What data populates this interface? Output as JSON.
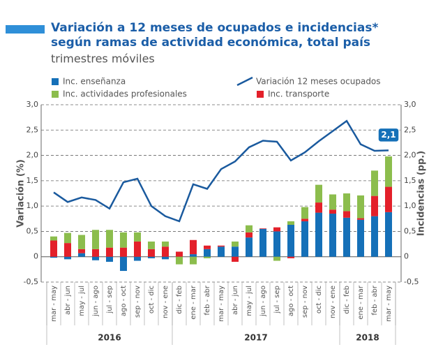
{
  "chart_data": {
    "type": "bar-line",
    "title": "Variación a 12 meses de ocupados e incidencias*",
    "title_line2": "según ramas de actividad económica, total país",
    "subtitle": "trimestres móviles",
    "ylabel": "Variación (%)",
    "y2label": "Incidencias (pp.)",
    "categories": [
      "mar - may",
      "abr - jun",
      "may - jul",
      "jun - ago",
      "jul - sep",
      "ago - oct",
      "sep - nov",
      "oct - dic",
      "nov - ene",
      "dic - feb",
      "ene - mar",
      "feb - abr",
      "mar - may",
      "abr - jun",
      "may - jul",
      "jun - ago",
      "jul - sep",
      "ago - oct",
      "sep - nov",
      "oct - dic",
      "nov - ene",
      "dic - feb",
      "ene - mar",
      "feb - abr",
      "mar - may"
    ],
    "groups": [
      {
        "label": "2016",
        "count": 9
      },
      {
        "label": "2017",
        "count": 12
      },
      {
        "label": "2018",
        "count": 4
      }
    ],
    "series": [
      {
        "name": "Inc. enseñanza",
        "type": "bar",
        "axis": "y2",
        "color": "#1570b8",
        "values": [
          -0.02,
          -0.05,
          0.07,
          -0.07,
          -0.1,
          -0.28,
          -0.08,
          -0.03,
          -0.05,
          0,
          0.05,
          0.15,
          0.2,
          0.2,
          0.38,
          0.55,
          0.5,
          0.63,
          0.7,
          0.87,
          0.85,
          0.77,
          0.73,
          0.8,
          0.88
        ]
      },
      {
        "name": "Variación 12 meses ocupados",
        "type": "line",
        "color": "#1a5a9e",
        "values": [
          1.27,
          1.08,
          1.17,
          1.12,
          0.95,
          1.47,
          1.54,
          1.0,
          0.8,
          0.7,
          1.43,
          1.34,
          1.73,
          1.88,
          2.16,
          2.29,
          2.27,
          1.9,
          2.06,
          2.28,
          2.48,
          2.68,
          2.22,
          2.09,
          2.1
        ],
        "value_labels": [
          null,
          null,
          null,
          null,
          null,
          null,
          null,
          null,
          null,
          null,
          null,
          null,
          null,
          null,
          null,
          null,
          null,
          null,
          null,
          null,
          null,
          null,
          null,
          null,
          "2,1"
        ]
      },
      {
        "name": "Inc. actividades profesionales",
        "type": "bar",
        "axis": "y2",
        "color": "#8cbd4d",
        "values": [
          0.08,
          0.2,
          0.28,
          0.38,
          0.35,
          0.3,
          0.18,
          0.15,
          0.1,
          -0.15,
          -0.15,
          -0.03,
          0,
          0.1,
          0.14,
          0,
          -0.08,
          0.07,
          0.23,
          0.35,
          0.3,
          0.35,
          0.45,
          0.5,
          0.6
        ]
      },
      {
        "name": "Inc. transporte",
        "type": "bar",
        "axis": "y2",
        "color": "#e3202a",
        "values": [
          0.32,
          0.27,
          0.08,
          0.15,
          0.18,
          0.18,
          0.3,
          0.15,
          0.2,
          0.1,
          0.28,
          0.07,
          0.02,
          -0.1,
          0.1,
          0.01,
          0.08,
          -0.03,
          0.05,
          0.2,
          0.08,
          0.13,
          0.03,
          0.4,
          0.5
        ]
      }
    ],
    "stack_order": [
      0,
      3,
      2
    ],
    "ylim": [
      -0.5,
      3.0
    ],
    "yticks": [
      {
        "value": -0.5,
        "label": "-0,5"
      },
      0,
      {
        "value": 0.5,
        "label": "0,5"
      },
      {
        "value": 1,
        "label": "1,0"
      },
      {
        "value": 1.5,
        "label": "1,5"
      },
      {
        "value": 2,
        "label": "2,0"
      },
      {
        "value": 2.5,
        "label": "2,5"
      },
      {
        "value": 3,
        "label": "3,0"
      }
    ],
    "y2lim": [
      -0.5,
      3.0
    ],
    "y2ticks": [
      {
        "value": -0.5,
        "label": "-0,5"
      },
      0,
      {
        "value": 0.5,
        "label": "0,5"
      },
      {
        "value": 1,
        "label": "1,0"
      },
      {
        "value": 1.5,
        "label": "1,5"
      },
      {
        "value": 2,
        "label": "2,0"
      },
      {
        "value": 2.5,
        "label": "2,5"
      },
      {
        "value": 3,
        "label": "3,0"
      }
    ],
    "grid": true
  }
}
